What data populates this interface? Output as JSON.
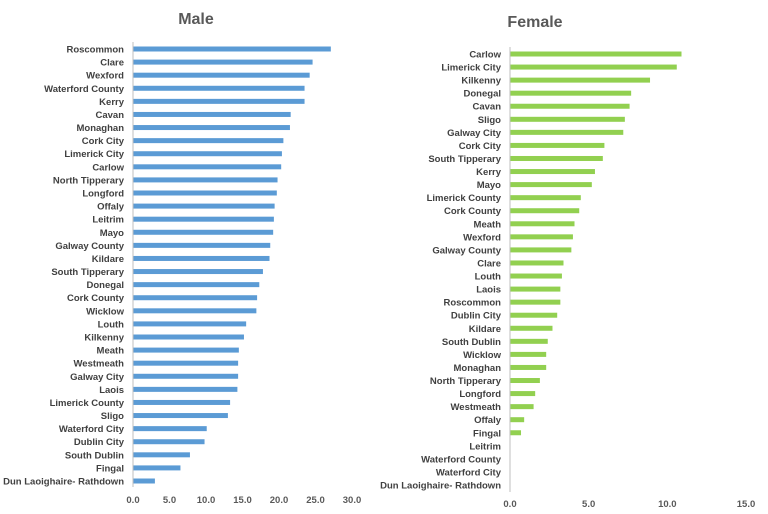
{
  "chart_data": [
    {
      "type": "bar",
      "orientation": "horizontal",
      "title": "Male",
      "color": "#5b9bd5",
      "xlim": [
        0,
        30
      ],
      "xticks": [
        "0.0",
        "5.0",
        "10.0",
        "15.0",
        "20.0",
        "25.0",
        "30.0"
      ],
      "tick_values": [
        0,
        5,
        10,
        15,
        20,
        25,
        30
      ],
      "grid": false,
      "categories": [
        "Roscommon",
        "Clare",
        "Wexford",
        "Waterford County",
        "Kerry",
        "Cavan",
        "Monaghan",
        "Cork City",
        "Limerick City",
        "Carlow",
        "North Tipperary",
        "Longford",
        "Offaly",
        "Leitrim",
        "Mayo",
        "Galway County",
        "Kildare",
        "South Tipperary",
        "Donegal",
        "Cork County",
        "Wicklow",
        "Louth",
        "Kilkenny",
        "Meath",
        "Westmeath",
        "Galway City",
        "Laois",
        "Limerick County",
        "Sligo",
        "Waterford City",
        "Dublin City",
        "South Dublin",
        "Fingal",
        "Dun Laoighaire- Rathdown"
      ],
      "values": [
        27.1,
        24.6,
        24.2,
        23.5,
        23.5,
        21.6,
        21.5,
        20.6,
        20.4,
        20.3,
        19.8,
        19.7,
        19.4,
        19.3,
        19.2,
        18.8,
        18.7,
        17.8,
        17.3,
        17.0,
        16.9,
        15.5,
        15.2,
        14.5,
        14.4,
        14.4,
        14.3,
        13.3,
        13.0,
        10.1,
        9.8,
        7.8,
        6.5,
        3.0
      ]
    },
    {
      "type": "bar",
      "orientation": "horizontal",
      "title": "Female",
      "color": "#92d050",
      "xlim": [
        0,
        15
      ],
      "xticks": [
        "0.0",
        "5.0",
        "10.0",
        "15.0"
      ],
      "tick_values": [
        0,
        5,
        10,
        15
      ],
      "grid": false,
      "categories": [
        "Carlow",
        "Limerick City",
        "Kilkenny",
        "Donegal",
        "Cavan",
        "Sligo",
        "Galway City",
        "Cork City",
        "South Tipperary",
        "Kerry",
        "Mayo",
        "Limerick County",
        "Cork County",
        "Meath",
        "Wexford",
        "Galway County",
        "Clare",
        "Louth",
        "Laois",
        "Roscommon",
        "Dublin City",
        "Kildare",
        "South Dublin",
        "Wicklow",
        "Monaghan",
        "North Tipperary",
        "Longford",
        "Westmeath",
        "Offaly",
        "Fingal",
        "Leitrim",
        "Waterford County",
        "Waterford City",
        "Dun Laoighaire- Rathdown"
      ],
      "values": [
        10.9,
        10.6,
        8.9,
        7.7,
        7.6,
        7.3,
        7.2,
        6.0,
        5.9,
        5.4,
        5.2,
        4.5,
        4.4,
        4.1,
        4.0,
        3.9,
        3.4,
        3.3,
        3.2,
        3.2,
        3.0,
        2.7,
        2.4,
        2.3,
        2.3,
        1.9,
        1.6,
        1.5,
        0.9,
        0.7,
        0,
        0,
        0,
        0
      ]
    }
  ]
}
